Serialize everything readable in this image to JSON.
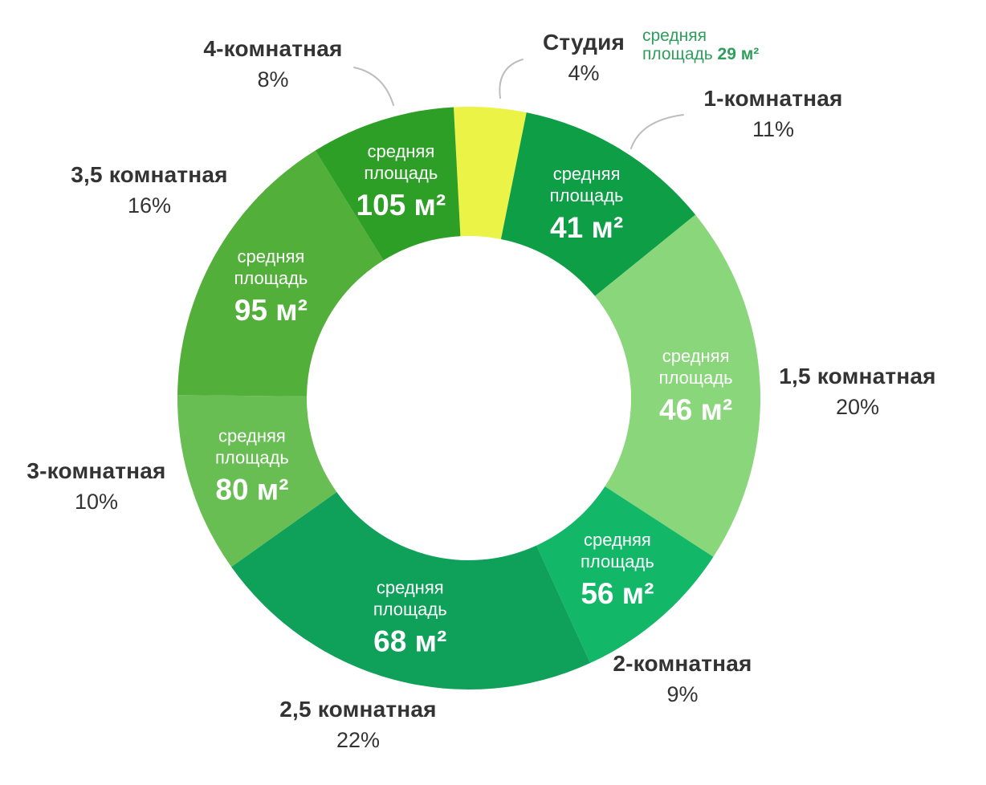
{
  "chart_data": {
    "type": "pie",
    "variant": "donut",
    "direction": "clockwise",
    "start_angle_deg": -3,
    "background": "#ffffff",
    "label_color": "#333333",
    "inner_label_color": "#ffffff",
    "leader_line_color": "#bdbdbd",
    "inner_label_prefix": [
      "средняя",
      "площадь"
    ],
    "segments": [
      {
        "label": "Студия",
        "percent": 4,
        "percent_label": "4%",
        "avg_area": "29 м²",
        "color": "#ECF347",
        "area_inside": false
      },
      {
        "label": "1-комнатная",
        "percent": 11,
        "percent_label": "11%",
        "avg_area": "41 м²",
        "color": "#0D9E46",
        "area_inside": true
      },
      {
        "label": "1,5 комнатная",
        "percent": 20,
        "percent_label": "20%",
        "avg_area": "46 м²",
        "color": "#8AD67B",
        "area_inside": true
      },
      {
        "label": "2-комнатная",
        "percent": 9,
        "percent_label": "9%",
        "avg_area": "56 м²",
        "color": "#12B768",
        "area_inside": true
      },
      {
        "label": "2,5 комнатная",
        "percent": 22,
        "percent_label": "22%",
        "avg_area": "68 м²",
        "color": "#0FA05A",
        "area_inside": true
      },
      {
        "label": "3-комнатная",
        "percent": 10,
        "percent_label": "10%",
        "avg_area": "80 м²",
        "color": "#68BE52",
        "area_inside": true
      },
      {
        "label": "3,5 комнатная",
        "percent": 16,
        "percent_label": "16%",
        "avg_area": "95 м²",
        "color": "#52AF3A",
        "area_inside": true
      },
      {
        "label": "4-комнатная",
        "percent": 8,
        "percent_label": "8%",
        "avg_area": "105 м²",
        "color": "#2E9F26",
        "area_inside": true
      }
    ],
    "studio_note": {
      "line1": "средняя",
      "line2_prefix": "площадь ",
      "value": "29 м²",
      "color": "#2F9E5C"
    }
  }
}
